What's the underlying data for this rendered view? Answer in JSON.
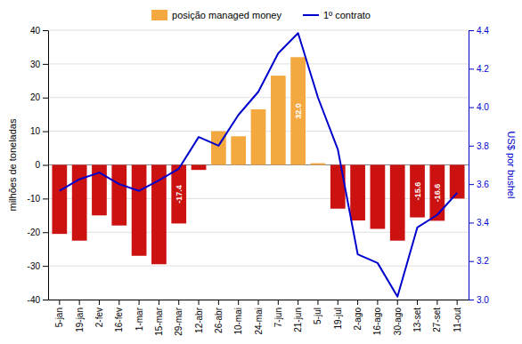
{
  "chart_data": {
    "type": "bar",
    "categories": [
      "5-jan",
      "19-jan",
      "2-fev",
      "16-fev",
      "1-mar",
      "15-mar",
      "29-mar",
      "12-abr",
      "26-abr",
      "10-mai",
      "24-mai",
      "7-jun",
      "21-jun",
      "5-jul",
      "19-jul",
      "2-ago",
      "16-ago",
      "30-ago",
      "13-set",
      "27-set",
      "11-out"
    ],
    "series": [
      {
        "name": "posição managed money",
        "type": "bar",
        "color": "#F4A840",
        "colors": [
          "#CC1111",
          "#CC1111",
          "#CC1111",
          "#CC1111",
          "#CC1111",
          "#CC1111",
          "#CC1111",
          "#CC1111",
          "#F4A840",
          "#F4A840",
          "#F4A840",
          "#F4A840",
          "#F4A840",
          "#F4A840",
          "#CC1111",
          "#CC1111",
          "#CC1111",
          "#CC1111",
          "#CC1111",
          "#CC1111",
          "#CC1111"
        ],
        "values": [
          -20.5,
          -22.5,
          -15.0,
          -18.0,
          -27.0,
          -29.5,
          -17.4,
          -1.5,
          10.0,
          8.5,
          16.5,
          26.5,
          32.0,
          0.5,
          -13.0,
          -16.5,
          -19.0,
          -22.5,
          -15.6,
          -16.6,
          -10.0
        ]
      },
      {
        "name": "1º contrato",
        "type": "line",
        "axis": "y2",
        "color": "#0000CC",
        "values": [
          3.565,
          3.625,
          3.66,
          3.6,
          3.565,
          3.62,
          3.68,
          3.845,
          3.8,
          3.96,
          4.08,
          4.28,
          4.385,
          4.05,
          3.78,
          3.235,
          3.19,
          3.015,
          3.375,
          3.44,
          3.555
        ]
      }
    ],
    "y_label": "milhões de toneladas",
    "y2_label": "US$ por bushel",
    "ylim": [
      -40,
      40
    ],
    "yticks": [
      -40,
      -30,
      -20,
      -10,
      0,
      10,
      20,
      30,
      40
    ],
    "y2lim": [
      3.0,
      4.4
    ],
    "y2ticks": [
      {
        "value": 3.0,
        "label": "3.0"
      },
      3.2,
      3.4,
      3.6,
      3.8,
      {
        "value": 4.0,
        "label": "4.0"
      },
      4.2,
      4.4
    ],
    "annotations": [
      {
        "category": "21-jun",
        "text": "32.0"
      },
      {
        "category": "29-mar",
        "text": "-17.4"
      },
      {
        "category": "13-set",
        "text": "-15.6"
      },
      {
        "category": "27-set",
        "text": "-16.6"
      }
    ],
    "grid": true,
    "legend": "top"
  }
}
